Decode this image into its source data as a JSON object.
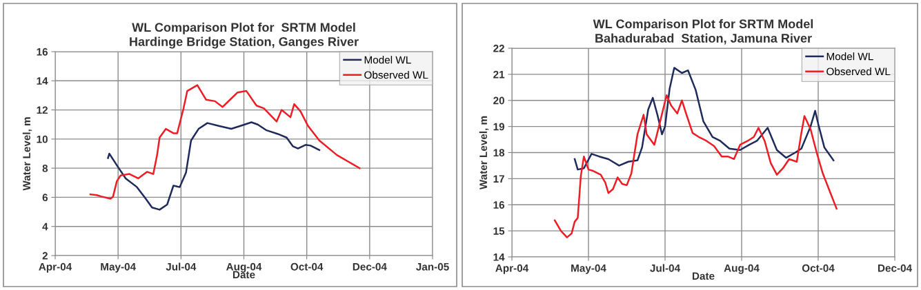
{
  "chart_data": [
    {
      "type": "line",
      "title": "WL Comparison Plot for  SRTM Model\nHardinge Bridge Station, Ganges River",
      "xlabel": "Date",
      "ylabel": "Water Level, m",
      "xlim": [
        "2004-04-01",
        "2005-01-26"
      ],
      "xticks": [
        {
          "value": "2004-04-01",
          "label": "Apr-04"
        },
        {
          "value": "2004-05-21",
          "label": "May-04"
        },
        {
          "value": "2004-07-10",
          "label": "Jul-04"
        },
        {
          "value": "2004-08-29",
          "label": "Aug-04"
        },
        {
          "value": "2004-10-18",
          "label": "Oct-04"
        },
        {
          "value": "2004-12-07",
          "label": "Dec-04"
        },
        {
          "value": "2005-01-26",
          "label": "Jan-05"
        }
      ],
      "ylim": [
        2,
        16
      ],
      "yticks": [
        2,
        4,
        6,
        8,
        10,
        12,
        14,
        16
      ],
      "grid": true,
      "legend": "top right",
      "line_style": "solid",
      "series": [
        {
          "name": "Model WL",
          "color": "#1f2a5c",
          "x": [
            "2004-05-13",
            "2004-05-14",
            "2004-05-20",
            "2004-05-27",
            "2004-06-05",
            "2004-06-12",
            "2004-06-17",
            "2004-06-23",
            "2004-06-29",
            "2004-07-04",
            "2004-07-09",
            "2004-07-14",
            "2004-07-18",
            "2004-07-24",
            "2004-07-31",
            "2004-08-09",
            "2004-08-19",
            "2004-08-28",
            "2004-09-04",
            "2004-09-09",
            "2004-09-16",
            "2004-09-25",
            "2004-10-02",
            "2004-10-07",
            "2004-10-11",
            "2004-10-17",
            "2004-10-21",
            "2004-10-28"
          ],
          "values": [
            8.7,
            9.0,
            8.2,
            7.3,
            6.7,
            5.9,
            5.3,
            5.15,
            5.5,
            6.8,
            6.7,
            7.7,
            9.9,
            10.7,
            11.1,
            10.9,
            10.7,
            10.95,
            11.15,
            11.0,
            10.6,
            10.35,
            10.1,
            9.5,
            9.35,
            9.6,
            9.55,
            9.25
          ]
        },
        {
          "name": "Observed WL",
          "color": "#ee1c25",
          "x": [
            "2004-04-29",
            "2004-05-04",
            "2004-05-08",
            "2004-05-15",
            "2004-05-17",
            "2004-05-20",
            "2004-05-23",
            "2004-05-30",
            "2004-06-06",
            "2004-06-13",
            "2004-06-18",
            "2004-06-21",
            "2004-06-23",
            "2004-06-28",
            "2004-07-04",
            "2004-07-07",
            "2004-07-12",
            "2004-07-15",
            "2004-07-23",
            "2004-07-30",
            "2004-08-06",
            "2004-08-12",
            "2004-08-18",
            "2004-08-24",
            "2004-08-31",
            "2004-09-08",
            "2004-09-14",
            "2004-09-24",
            "2004-09-28",
            "2004-10-05",
            "2004-10-08",
            "2004-10-13",
            "2004-10-19",
            "2004-10-28",
            "2004-11-11",
            "2004-11-29"
          ],
          "values": [
            6.2,
            6.15,
            6.05,
            5.9,
            6.05,
            7.1,
            7.5,
            7.6,
            7.3,
            7.75,
            7.6,
            8.9,
            10.1,
            10.7,
            10.4,
            10.4,
            12.1,
            13.3,
            13.7,
            12.7,
            12.6,
            12.2,
            12.7,
            13.2,
            13.3,
            12.3,
            12.1,
            11.2,
            12.0,
            11.5,
            12.4,
            11.9,
            10.9,
            9.9,
            8.9,
            8.0
          ]
        }
      ]
    },
    {
      "type": "line",
      "title": "WL Comparison Plot for SRTM Model\nBahadurabad  Station, Jamuna River",
      "xlabel": "Date",
      "ylabel": "Water Level, m",
      "xlim": [
        "2004-04-01",
        "2004-12-07"
      ],
      "xticks": [
        {
          "value": "2004-04-01",
          "label": "Apr-04"
        },
        {
          "value": "2004-05-21",
          "label": "May-04"
        },
        {
          "value": "2004-07-10",
          "label": "Jul-04"
        },
        {
          "value": "2004-08-29",
          "label": "Aug-04"
        },
        {
          "value": "2004-10-18",
          "label": "Oct-04"
        },
        {
          "value": "2004-12-07",
          "label": "Dec-04"
        }
      ],
      "ylim": [
        14,
        22
      ],
      "yticks": [
        14,
        15,
        16,
        17,
        18,
        19,
        20,
        21,
        22
      ],
      "grid": true,
      "legend": "top right",
      "line_style": "solid",
      "series": [
        {
          "name": "Model WL",
          "color": "#1f2a5c",
          "x": [
            "2004-05-12",
            "2004-05-14",
            "2004-05-18",
            "2004-05-23",
            "2004-05-28",
            "2004-06-03",
            "2004-06-10",
            "2004-06-16",
            "2004-06-22",
            "2004-06-25",
            "2004-06-29",
            "2004-07-02",
            "2004-07-05",
            "2004-07-08",
            "2004-07-10",
            "2004-07-13",
            "2004-07-16",
            "2004-07-21",
            "2004-07-25",
            "2004-07-30",
            "2004-08-04",
            "2004-08-10",
            "2004-08-15",
            "2004-08-21",
            "2004-08-28",
            "2004-09-03",
            "2004-09-08",
            "2004-09-15",
            "2004-09-21",
            "2004-09-27",
            "2004-10-03",
            "2004-10-07",
            "2004-10-13",
            "2004-10-16",
            "2004-10-18",
            "2004-10-22",
            "2004-10-28"
          ],
          "values": [
            17.75,
            17.35,
            17.4,
            17.95,
            17.85,
            17.75,
            17.5,
            17.65,
            17.7,
            18.2,
            19.65,
            20.1,
            19.45,
            18.7,
            19.0,
            20.45,
            21.25,
            21.05,
            21.15,
            20.4,
            19.2,
            18.6,
            18.45,
            18.15,
            18.1,
            18.3,
            18.45,
            18.95,
            18.1,
            17.8,
            18.0,
            18.15,
            19.0,
            19.6,
            19.1,
            18.2,
            17.7
          ]
        },
        {
          "name": "Observed WL",
          "color": "#ee1c25",
          "x": [
            "2004-04-29",
            "2004-05-03",
            "2004-05-07",
            "2004-05-10",
            "2004-05-12",
            "2004-05-14",
            "2004-05-16",
            "2004-05-18",
            "2004-05-21",
            "2004-05-24",
            "2004-05-29",
            "2004-06-01",
            "2004-06-03",
            "2004-06-06",
            "2004-06-09",
            "2004-06-12",
            "2004-06-15",
            "2004-06-18",
            "2004-06-22",
            "2004-06-26",
            "2004-06-28",
            "2004-07-03",
            "2004-07-06",
            "2004-07-11",
            "2004-07-14",
            "2004-07-18",
            "2004-07-21",
            "2004-07-24",
            "2004-07-28",
            "2004-08-01",
            "2004-08-06",
            "2004-08-11",
            "2004-08-16",
            "2004-08-20",
            "2004-08-24",
            "2004-08-28",
            "2004-09-02",
            "2004-09-06",
            "2004-09-09",
            "2004-09-13",
            "2004-09-17",
            "2004-09-21",
            "2004-09-25",
            "2004-09-29",
            "2004-10-04",
            "2004-10-07",
            "2004-10-09",
            "2004-10-13",
            "2004-10-17",
            "2004-10-21",
            "2004-10-26",
            "2004-10-30"
          ],
          "values": [
            15.4,
            15.0,
            14.75,
            14.9,
            15.35,
            15.5,
            17.1,
            17.85,
            17.35,
            17.3,
            17.15,
            16.85,
            16.45,
            16.6,
            17.05,
            16.8,
            16.75,
            17.2,
            18.7,
            19.45,
            18.7,
            18.3,
            19.0,
            20.2,
            19.8,
            19.5,
            20.0,
            19.45,
            18.75,
            18.6,
            18.45,
            18.25,
            17.85,
            17.85,
            17.75,
            18.3,
            18.45,
            18.6,
            18.95,
            18.45,
            17.6,
            17.15,
            17.4,
            17.75,
            17.65,
            18.75,
            19.4,
            18.9,
            18.0,
            17.2,
            16.45,
            15.85
          ]
        }
      ]
    }
  ]
}
